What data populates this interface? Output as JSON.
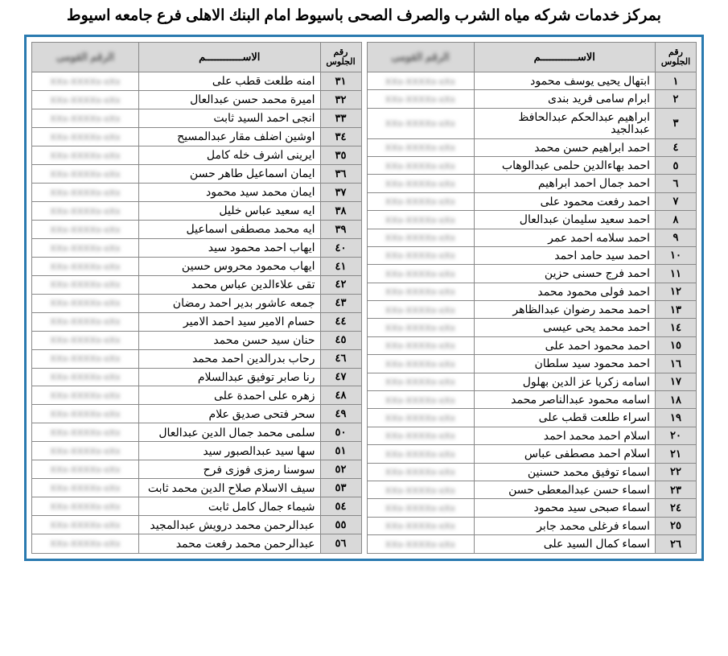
{
  "title": "بمركز خدمات شركه مياه الشرب والصرف الصحى باسيوط امام البنك الاهلى فرع جامعه اسيوط",
  "headers": {
    "seat": "رقم الجلوس",
    "name": "الاســــــــــــم",
    "nid": "الرقم القومى"
  },
  "colors": {
    "frame_border": "#2a7ab0",
    "header_bg": "#d9d9d9",
    "seat_bg": "#d9d9d9",
    "cell_border": "#888888",
    "text": "#000000",
    "blur_text": "#777777"
  },
  "blur_placeholder": "XXx-XXXXx-xXx",
  "font_sizes": {
    "title": 19,
    "header": 13,
    "seat": 13,
    "name": 14,
    "nid_placeholder": 11
  },
  "right_table": [
    {
      "seat": "١",
      "name": "ابتهال يحيى يوسف محمود"
    },
    {
      "seat": "٢",
      "name": "ابرام سامى فريد بندى"
    },
    {
      "seat": "٣",
      "name": "ابراهيم عبدالحكم عبدالحافظ عبدالجيد"
    },
    {
      "seat": "٤",
      "name": "احمد ابراهيم حسن محمد"
    },
    {
      "seat": "٥",
      "name": "احمد بهاءالدين حلمى عبدالوهاب"
    },
    {
      "seat": "٦",
      "name": "احمد جمال احمد ابراهيم"
    },
    {
      "seat": "٧",
      "name": "احمد رفعت محمود على"
    },
    {
      "seat": "٨",
      "name": "احمد سعيد سليمان عبدالعال"
    },
    {
      "seat": "٩",
      "name": "احمد سلامه احمد عمر"
    },
    {
      "seat": "١٠",
      "name": "احمد سيد حامد احمد"
    },
    {
      "seat": "١١",
      "name": "احمد فرج حسنى حزين"
    },
    {
      "seat": "١٢",
      "name": "احمد فولى محمود محمد"
    },
    {
      "seat": "١٣",
      "name": "احمد محمد رضوان عبدالظاهر"
    },
    {
      "seat": "١٤",
      "name": "احمد محمد يحى عيسى"
    },
    {
      "seat": "١٥",
      "name": "احمد محمود احمد على"
    },
    {
      "seat": "١٦",
      "name": "احمد محمود سيد سلطان"
    },
    {
      "seat": "١٧",
      "name": "اسامه زكريا عز الدين بهلول"
    },
    {
      "seat": "١٨",
      "name": "اسامه محمود عبدالناصر محمد"
    },
    {
      "seat": "١٩",
      "name": "اسراء طلعت قطب على"
    },
    {
      "seat": "٢٠",
      "name": "اسلام احمد محمد احمد"
    },
    {
      "seat": "٢١",
      "name": "اسلام احمد مصطفى عباس"
    },
    {
      "seat": "٢٢",
      "name": "اسماء توفيق محمد حسنين"
    },
    {
      "seat": "٢٣",
      "name": "اسماء حسن عبدالمعطى حسن"
    },
    {
      "seat": "٢٤",
      "name": "اسماء صبحى سيد محمود"
    },
    {
      "seat": "٢٥",
      "name": "اسماء فرغلى محمد جابر"
    },
    {
      "seat": "٢٦",
      "name": "اسماء كمال السيد على"
    }
  ],
  "left_table": [
    {
      "seat": "٣١",
      "name": "امنه طلعت قطب على"
    },
    {
      "seat": "٣٢",
      "name": "اميرة محمد حسن عبدالعال"
    },
    {
      "seat": "٣٣",
      "name": "انجى احمد السيد ثابت"
    },
    {
      "seat": "٣٤",
      "name": "اوشين اضلف مقار عبدالمسيح"
    },
    {
      "seat": "٣٥",
      "name": "ايرينى اشرف خله كامل"
    },
    {
      "seat": "٣٦",
      "name": "ايمان اسماعيل طاهر حسن"
    },
    {
      "seat": "٣٧",
      "name": "ايمان محمد سيد محمود"
    },
    {
      "seat": "٣٨",
      "name": "ايه سعيد عباس خليل"
    },
    {
      "seat": "٣٩",
      "name": "ايه محمد مصطفى اسماعيل"
    },
    {
      "seat": "٤٠",
      "name": "ايهاب احمد محمود سيد"
    },
    {
      "seat": "٤١",
      "name": "ايهاب محمود محروس حسين"
    },
    {
      "seat": "٤٢",
      "name": "تقى علاءالدين عباس محمد"
    },
    {
      "seat": "٤٣",
      "name": "جمعه عاشور بدير احمد رمضان"
    },
    {
      "seat": "٤٤",
      "name": "حسام الامير سيد احمد الامير"
    },
    {
      "seat": "٤٥",
      "name": "حنان سيد حسن محمد"
    },
    {
      "seat": "٤٦",
      "name": "رحاب بدرالدين احمد محمد"
    },
    {
      "seat": "٤٧",
      "name": "رنا صابر توفيق عبدالسلام"
    },
    {
      "seat": "٤٨",
      "name": "زهره على احمدة على"
    },
    {
      "seat": "٤٩",
      "name": "سحر فتحى صديق علام"
    },
    {
      "seat": "٥٠",
      "name": "سلمى محمد جمال الدين عبدالعال"
    },
    {
      "seat": "٥١",
      "name": "سها سيد عبدالصبور سيد"
    },
    {
      "seat": "٥٢",
      "name": "سوسنا رمزى فوزى فرح"
    },
    {
      "seat": "٥٣",
      "name": "سيف الاسلام صلاح الدين محمد ثابت"
    },
    {
      "seat": "٥٤",
      "name": "شيماء جمال كامل ثابت"
    },
    {
      "seat": "٥٥",
      "name": "عبدالرحمن محمد درويش عبدالمجيد"
    },
    {
      "seat": "٥٦",
      "name": "عبدالرحمن محمد رفعت محمد"
    }
  ]
}
